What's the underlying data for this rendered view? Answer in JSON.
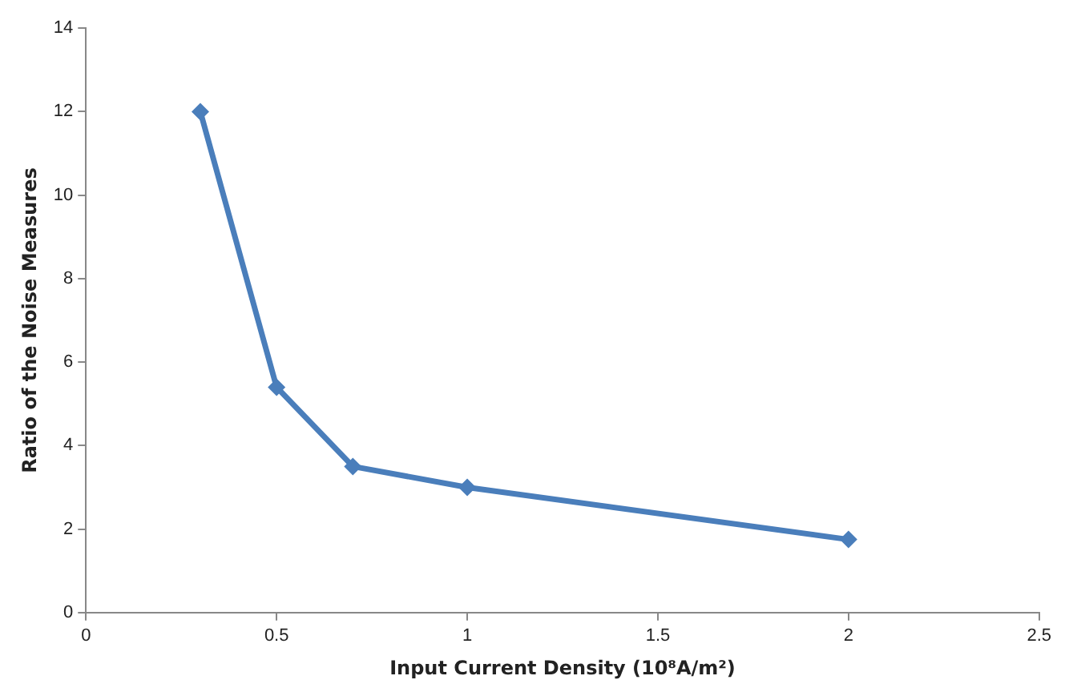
{
  "chart_data": {
    "type": "line",
    "xlabel": "Input Current Density (10⁸A/m²)",
    "ylabel": "Ratio of the Noise Measures",
    "x": [
      0.3,
      0.5,
      0.7,
      1,
      2
    ],
    "series": [
      {
        "color": "#4a7ebb",
        "values": [
          12,
          5.4,
          3.5,
          3.0,
          1.75
        ]
      }
    ],
    "xlim": [
      0,
      2.5
    ],
    "xticks": [
      0,
      0.5,
      1,
      1.5,
      2,
      2.5
    ],
    "ylim": [
      0,
      14
    ],
    "yticks": [
      0,
      2,
      4,
      6,
      8,
      10,
      12,
      14
    ],
    "grid": false,
    "legend": false,
    "marker": "diamond",
    "line_style": "solid"
  }
}
